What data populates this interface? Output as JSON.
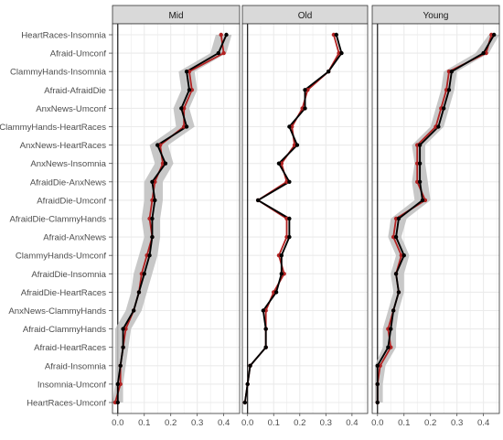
{
  "chart_data": {
    "type": "line",
    "title": "",
    "xlabel": "",
    "ylabel": "",
    "xlim": [
      -0.02,
      0.46
    ],
    "xticks": [
      "0.0",
      "0.1",
      "0.2",
      "0.3",
      "0.4"
    ],
    "grid": true,
    "panel_labels": [
      "Mid",
      "Old",
      "Young"
    ],
    "categories": [
      "HeartRaces-Insomnia",
      "Afraid-Umconf",
      "ClammyHands-Insomnia",
      "Afraid-AfraidDie",
      "AnxNews-Umconf",
      "ClammyHands-HeartRaces",
      "AnxNews-HeartRaces",
      "AnxNews-Insomnia",
      "AfraidDie-AnxNews",
      "AfraidDie-Umconf",
      "AfraidDie-ClammyHands",
      "Afraid-AnxNews",
      "ClammyHands-Umconf",
      "AfraidDie-Insomnia",
      "AfraidDie-HeartRaces",
      "AnxNews-ClammyHands",
      "Afraid-ClammyHands",
      "Afraid-HeartRaces",
      "Afraid-Insomnia",
      "Insomnia-Umconf",
      "HeartRaces-Umconf"
    ],
    "colors": {
      "black_series": "#000000",
      "red_series": "#b22222",
      "band": "#bebebe",
      "strip_bg": "#d9d9d9",
      "grid": "#ebebeb"
    },
    "panels": [
      {
        "label": "Mid",
        "series": [
          {
            "color": "black",
            "values": [
              0.41,
              0.38,
              0.26,
              0.27,
              0.24,
              0.26,
              0.15,
              0.18,
              0.13,
              0.14,
              0.13,
              0.13,
              0.12,
              0.1,
              0.08,
              0.06,
              0.02,
              0.02,
              0.01,
              0.0,
              0.0
            ]
          },
          {
            "color": "red",
            "values": [
              0.39,
              0.4,
              0.27,
              0.28,
              0.25,
              0.25,
              0.16,
              0.17,
              0.14,
              0.13,
              0.12,
              0.13,
              0.11,
              0.09,
              0.08,
              0.06,
              0.03,
              0.02,
              0.01,
              0.01,
              -0.01
            ]
          }
        ],
        "band": [
          [
            0.37,
            0.43
          ],
          [
            0.35,
            0.41
          ],
          [
            0.23,
            0.29
          ],
          [
            0.24,
            0.3
          ],
          [
            0.21,
            0.27
          ],
          [
            0.22,
            0.29
          ],
          [
            0.12,
            0.19
          ],
          [
            0.14,
            0.21
          ],
          [
            0.1,
            0.17
          ],
          [
            0.1,
            0.17
          ],
          [
            0.09,
            0.16
          ],
          [
            0.1,
            0.16
          ],
          [
            0.08,
            0.15
          ],
          [
            0.06,
            0.13
          ],
          [
            0.05,
            0.11
          ],
          [
            0.03,
            0.09
          ],
          [
            -0.01,
            0.05
          ],
          [
            -0.01,
            0.04
          ],
          [
            -0.01,
            0.03
          ],
          [
            -0.01,
            0.02
          ],
          [
            -0.02,
            0.02
          ]
        ]
      },
      {
        "label": "Old",
        "series": [
          {
            "color": "black",
            "values": [
              0.34,
              0.36,
              0.31,
              0.22,
              0.22,
              0.16,
              0.19,
              0.12,
              0.16,
              0.04,
              0.16,
              0.16,
              0.13,
              0.13,
              0.11,
              0.06,
              0.07,
              0.07,
              0.01,
              0.0,
              -0.01
            ]
          },
          {
            "color": "red",
            "values": [
              0.33,
              0.35,
              0.31,
              0.23,
              0.21,
              0.17,
              0.18,
              0.13,
              0.15,
              0.04,
              0.15,
              0.15,
              0.12,
              0.14,
              0.1,
              0.07,
              0.07,
              0.07,
              0.01,
              0.0,
              -0.01
            ]
          }
        ],
        "band": []
      },
      {
        "label": "Young",
        "series": [
          {
            "color": "black",
            "values": [
              0.44,
              0.4,
              0.28,
              0.27,
              0.25,
              0.23,
              0.16,
              0.16,
              0.16,
              0.17,
              0.08,
              0.07,
              0.1,
              0.07,
              0.08,
              0.06,
              0.05,
              0.04,
              0.0,
              0.0,
              0.0
            ]
          },
          {
            "color": "red",
            "values": [
              0.43,
              0.41,
              0.27,
              0.26,
              0.24,
              0.22,
              0.15,
              0.15,
              0.15,
              0.18,
              0.07,
              0.06,
              0.09,
              0.07,
              0.08,
              0.06,
              0.04,
              0.05,
              0.01,
              0.0,
              0.0
            ]
          }
        ],
        "band": [
          [
            0.42,
            0.46
          ],
          [
            0.37,
            0.42
          ],
          [
            0.25,
            0.3
          ],
          [
            0.24,
            0.29
          ],
          [
            0.22,
            0.27
          ],
          [
            0.2,
            0.25
          ],
          [
            0.13,
            0.18
          ],
          [
            0.14,
            0.18
          ],
          [
            0.13,
            0.19
          ],
          [
            0.14,
            0.2
          ],
          [
            0.05,
            0.11
          ],
          [
            0.04,
            0.09
          ],
          [
            0.07,
            0.12
          ],
          [
            0.05,
            0.1
          ],
          [
            0.06,
            0.1
          ],
          [
            0.04,
            0.08
          ],
          [
            0.02,
            0.07
          ],
          [
            0.02,
            0.07
          ],
          [
            -0.01,
            0.03
          ],
          [
            -0.01,
            0.02
          ],
          [
            -0.01,
            0.02
          ]
        ]
      }
    ]
  }
}
